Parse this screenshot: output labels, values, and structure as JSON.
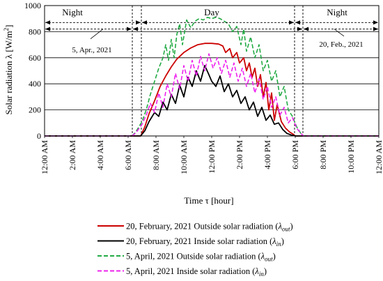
{
  "chart_data": {
    "type": "line",
    "title": "",
    "ylabel_main": "Solar radiation λ [W/m",
    "ylabel_sup": "2",
    "ylabel_close": "]",
    "xlabel": "Time τ [hour]",
    "ylim": [
      0,
      1000
    ],
    "yticks": [
      "0",
      "200",
      "400",
      "600",
      "800",
      "1000"
    ],
    "ytick_values": [
      0,
      200,
      400,
      600,
      800,
      1000
    ],
    "xlim": [
      0,
      24
    ],
    "xticks": [
      "12:00 AM",
      "2:00 AM",
      "4:00 AM",
      "6:00 AM",
      "8:00 AM",
      "10:00 AM",
      "12:00 PM",
      "2:00 PM",
      "4:00 PM",
      "6:00 PM",
      "8:00 PM",
      "10:00 PM",
      "12:00 AM"
    ],
    "xtick_hours": [
      0,
      2,
      4,
      6,
      8,
      10,
      12,
      14,
      16,
      18,
      20,
      22,
      24
    ],
    "grid": true,
    "legend_position": "bottom",
    "annotations": {
      "night_left": "Night",
      "day": "Day",
      "night_right": "Night",
      "apr_label": "5, Apr., 2021",
      "feb_label": "20, Feb., 2021"
    },
    "period_boundaries_hours": {
      "feb_sunrise": 6.95,
      "feb_sunset": 17.95,
      "apr_sunrise": 6.3,
      "apr_sunset": 18.55
    },
    "period_arrow_levels": [
      870,
      820
    ],
    "series": [
      {
        "name_prefix": "20, February, 2021 Outside solar radiation (",
        "name_symbol": "λ",
        "name_sub": "out",
        "name_suffix": ")",
        "color": "#cc0000",
        "style": "solid",
        "x": [
          0,
          6.9,
          7.2,
          7.5,
          7.9,
          8.3,
          8.7,
          9.1,
          9.5,
          10.0,
          10.5,
          11.0,
          11.5,
          12.0,
          12.5,
          12.8,
          13.0,
          13.3,
          13.5,
          13.8,
          14.0,
          14.3,
          14.5,
          14.7,
          14.9,
          15.1,
          15.3,
          15.5,
          15.7,
          15.9,
          16.1,
          16.3,
          16.5,
          16.7,
          17.0,
          17.3,
          17.6,
          17.9,
          18.0,
          24
        ],
        "y": [
          0,
          0,
          70,
          170,
          270,
          380,
          460,
          530,
          590,
          640,
          675,
          700,
          710,
          710,
          705,
          690,
          640,
          670,
          600,
          640,
          560,
          600,
          500,
          560,
          450,
          520,
          380,
          470,
          300,
          410,
          200,
          330,
          120,
          240,
          110,
          60,
          30,
          10,
          0,
          0
        ]
      },
      {
        "name_prefix": "20, February, 2021 Inside solar radiation (",
        "name_symbol": "λ",
        "name_sub": "in",
        "name_suffix": ")",
        "color": "#000000",
        "style": "solid",
        "x": [
          0,
          6.9,
          7.2,
          7.5,
          7.9,
          8.2,
          8.5,
          8.8,
          9.1,
          9.4,
          9.7,
          10.0,
          10.3,
          10.6,
          10.9,
          11.2,
          11.5,
          11.8,
          12.0,
          12.3,
          12.6,
          12.9,
          13.2,
          13.5,
          13.8,
          14.1,
          14.4,
          14.7,
          15.0,
          15.3,
          15.6,
          15.9,
          16.2,
          16.5,
          16.8,
          17.1,
          17.4,
          17.7,
          18.0,
          24
        ],
        "y": [
          0,
          0,
          40,
          110,
          180,
          150,
          260,
          200,
          320,
          250,
          390,
          300,
          450,
          380,
          500,
          420,
          540,
          470,
          420,
          380,
          460,
          340,
          400,
          300,
          350,
          250,
          300,
          200,
          260,
          150,
          220,
          120,
          160,
          90,
          100,
          50,
          20,
          8,
          0,
          0
        ]
      },
      {
        "name_prefix": "5, April, 2021 Outside solar radiation (",
        "name_symbol": "λ",
        "name_sub": "out",
        "name_suffix": ")",
        "color": "#22aa44",
        "style": "dashed",
        "x": [
          0,
          6.3,
          6.6,
          7.0,
          7.3,
          7.6,
          7.9,
          8.2,
          8.5,
          8.7,
          8.9,
          9.1,
          9.3,
          9.5,
          9.7,
          9.9,
          10.2,
          10.5,
          10.8,
          11.1,
          11.4,
          11.7,
          12.0,
          12.3,
          12.6,
          12.9,
          13.2,
          13.5,
          13.8,
          14.1,
          14.3,
          14.5,
          14.8,
          15.1,
          15.4,
          15.7,
          16.0,
          16.3,
          16.6,
          16.9,
          17.2,
          17.5,
          17.8,
          18.1,
          18.4,
          18.6,
          24
        ],
        "y": [
          0,
          0,
          40,
          110,
          200,
          320,
          420,
          520,
          600,
          700,
          580,
          740,
          600,
          780,
          860,
          700,
          890,
          830,
          880,
          900,
          890,
          910,
          900,
          910,
          900,
          880,
          860,
          800,
          840,
          700,
          820,
          650,
          760,
          600,
          700,
          500,
          580,
          420,
          500,
          300,
          380,
          200,
          150,
          70,
          20,
          0,
          0
        ]
      },
      {
        "name_prefix": "5, April, 2021 Inside solar radiation (",
        "name_symbol": "λ",
        "name_sub": "in",
        "name_suffix": ")",
        "color": "#ee22ee",
        "style": "dashed",
        "x": [
          0,
          6.3,
          6.6,
          7.0,
          7.3,
          7.6,
          7.9,
          8.2,
          8.5,
          8.8,
          9.1,
          9.4,
          9.7,
          10.0,
          10.3,
          10.6,
          10.9,
          11.2,
          11.5,
          11.8,
          12.1,
          12.4,
          12.7,
          13.0,
          13.3,
          13.6,
          13.9,
          14.2,
          14.5,
          14.8,
          15.1,
          15.4,
          15.7,
          16.0,
          16.3,
          16.6,
          16.9,
          17.2,
          17.5,
          17.8,
          18.1,
          18.4,
          18.6,
          24
        ],
        "y": [
          0,
          0,
          30,
          90,
          160,
          250,
          180,
          330,
          220,
          400,
          300,
          480,
          360,
          540,
          420,
          580,
          460,
          610,
          500,
          630,
          520,
          600,
          480,
          580,
          450,
          560,
          420,
          520,
          380,
          480,
          330,
          440,
          280,
          380,
          220,
          300,
          160,
          220,
          100,
          140,
          60,
          20,
          0,
          0
        ]
      }
    ]
  }
}
